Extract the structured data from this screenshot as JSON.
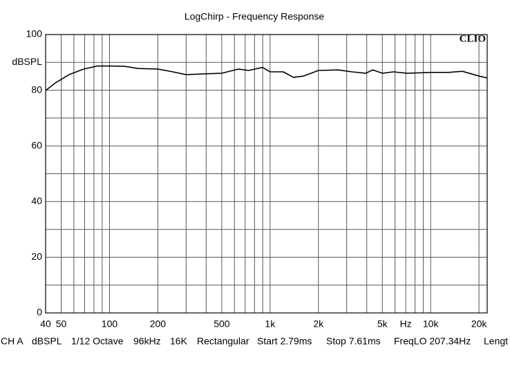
{
  "chart_data": {
    "type": "line",
    "title": "LogChirp - Frequency Response",
    "brand": "CLIO",
    "ylabel": "dBSPL",
    "xscale": "log",
    "grid": true,
    "xlim": [
      40,
      22500
    ],
    "ylim": [
      0,
      100
    ],
    "yticks": [
      0,
      20,
      40,
      60,
      80,
      100
    ],
    "yminor": [
      10,
      30,
      50,
      70,
      90
    ],
    "xticks": [
      40,
      50,
      100,
      200,
      500,
      {
        "value": 1000,
        "label": "1k"
      },
      {
        "value": 2000,
        "label": "2k"
      },
      {
        "value": 5000,
        "label": "5k"
      },
      {
        "value": 7000,
        "label": "Hz"
      },
      {
        "value": 10000,
        "label": "10k"
      },
      {
        "value": 20000,
        "label": "20k"
      }
    ],
    "xminor": [
      60,
      70,
      80,
      90,
      300,
      400,
      600,
      700,
      800,
      900,
      3000,
      4000,
      6000,
      8000,
      9000
    ],
    "x": [
      40,
      46,
      56,
      69,
      84,
      100,
      124,
      151,
      200,
      248,
      300,
      400,
      500,
      635,
      736,
      897,
      1000,
      1208,
      1400,
      1622,
      2000,
      2660,
      3243,
      3953,
      4355,
      5000,
      5864,
      7145,
      10000,
      12940,
      15750,
      20000,
      22500
    ],
    "series": [
      {
        "color": "#000000",
        "values": [
          79.9,
          82.6,
          85.6,
          87.6,
          88.7,
          88.7,
          88.6,
          87.8,
          87.6,
          86.6,
          85.6,
          85.9,
          86.1,
          87.6,
          87.1,
          88.2,
          86.6,
          86.6,
          84.6,
          85.1,
          87.1,
          87.3,
          86.6,
          86.1,
          87.3,
          86.1,
          86.6,
          86.1,
          86.4,
          86.4,
          86.8,
          85.1,
          84.4
        ]
      }
    ],
    "footer": [
      "CH A",
      "dBSPL",
      "1/12 Octave",
      "96kHz",
      "16K",
      "Rectangular",
      "Start 2.79ms",
      "Stop 7.61ms",
      "FreqLO 207.34Hz",
      "Lengt"
    ]
  }
}
